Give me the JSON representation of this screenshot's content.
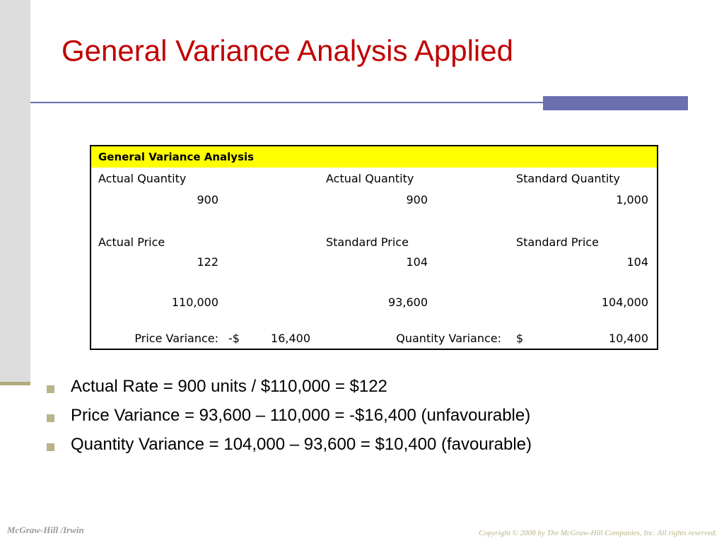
{
  "slide": {
    "title": "General Variance Analysis Applied"
  },
  "table": {
    "header": "General Variance Analysis",
    "col1": {
      "qty_label": "Actual Quantity",
      "qty_value": "900",
      "price_label": "Actual Price",
      "price_value": "122",
      "total": "110,000"
    },
    "col2": {
      "qty_label": "Actual Quantity",
      "qty_value": "900",
      "price_label": "Standard Price",
      "price_value": "104",
      "total": "93,600"
    },
    "col3": {
      "qty_label": "Standard Quantity",
      "qty_value": "1,000",
      "price_label": "Standard Price",
      "price_value": "104",
      "total": "104,000"
    },
    "price_variance": {
      "label": "Price Variance:",
      "currency": "-$",
      "value": "16,400"
    },
    "quantity_variance": {
      "label": "Quantity Variance:",
      "currency": "$",
      "value": "10,400"
    }
  },
  "bullets": [
    "Actual Rate = 900 units / $110,000 = $122",
    "Price Variance = 93,600 – 110,000 = -$16,400 (unfavourable)",
    "Quantity Variance = 104,000 – 93,600 = $10,400 (favourable)"
  ],
  "footer": {
    "left": "McGraw-Hill /Irwin",
    "right": "Copyright © 2008 by The McGraw-Hill Companies, Inc. All rights reserved."
  },
  "colors": {
    "title": "#c00000",
    "accent": "#6a6fb0",
    "header_fill": "#ffff00",
    "bullet": "#b8b488"
  }
}
